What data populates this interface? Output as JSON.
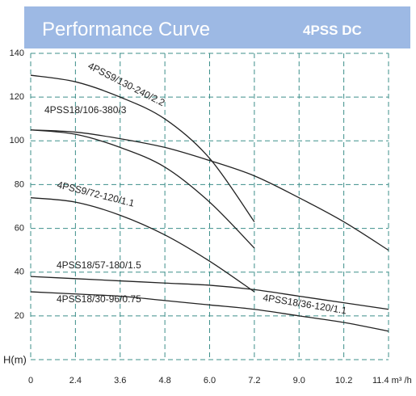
{
  "chart_data": {
    "type": "line",
    "title": "Performance Curve",
    "subtitle": "4PSS DC",
    "y_label": "H(m)",
    "categories": [
      "0",
      "2.4",
      "3.6",
      "4.8",
      "6.0",
      "7.2",
      "9.0",
      "10.2",
      "11.4 m³ /h"
    ],
    "ylim": [
      0,
      140
    ],
    "yticks": [
      20,
      40,
      60,
      80,
      100,
      120,
      140
    ],
    "grid": true,
    "series": [
      {
        "name": "4PSS9/130-240/2.2",
        "color": "#222222",
        "values": [
          130,
          127,
          120,
          110,
          92,
          63,
          null,
          null,
          null
        ]
      },
      {
        "name": "4PSS18/106-380/3",
        "color": "#222222",
        "values": [
          105,
          104,
          101,
          97,
          91,
          84,
          74,
          63,
          50
        ]
      },
      {
        "color": "#222222",
        "values": [
          105,
          103,
          97,
          88,
          72,
          51,
          null,
          null,
          null
        ]
      },
      {
        "name": "4PSS9/72-120/1.1",
        "color": "#222222",
        "values": [
          74,
          72,
          66,
          57,
          45,
          31,
          null,
          null,
          null
        ]
      },
      {
        "name": "4PSS18/57-180/1.5",
        "color": "#222222",
        "values": [
          38,
          37,
          36,
          35,
          34,
          32,
          29,
          26,
          23
        ]
      },
      {
        "name": "4PSS18/30-96/0.75",
        "color": "#222222",
        "values": [
          31,
          30,
          29,
          27,
          25,
          23,
          20,
          17,
          13
        ]
      },
      {
        "name": "4PSS18/36-120/1.1",
        "color": "#222222",
        "values": [
          null,
          null,
          null,
          null,
          null,
          null,
          null,
          null,
          null
        ]
      }
    ]
  }
}
